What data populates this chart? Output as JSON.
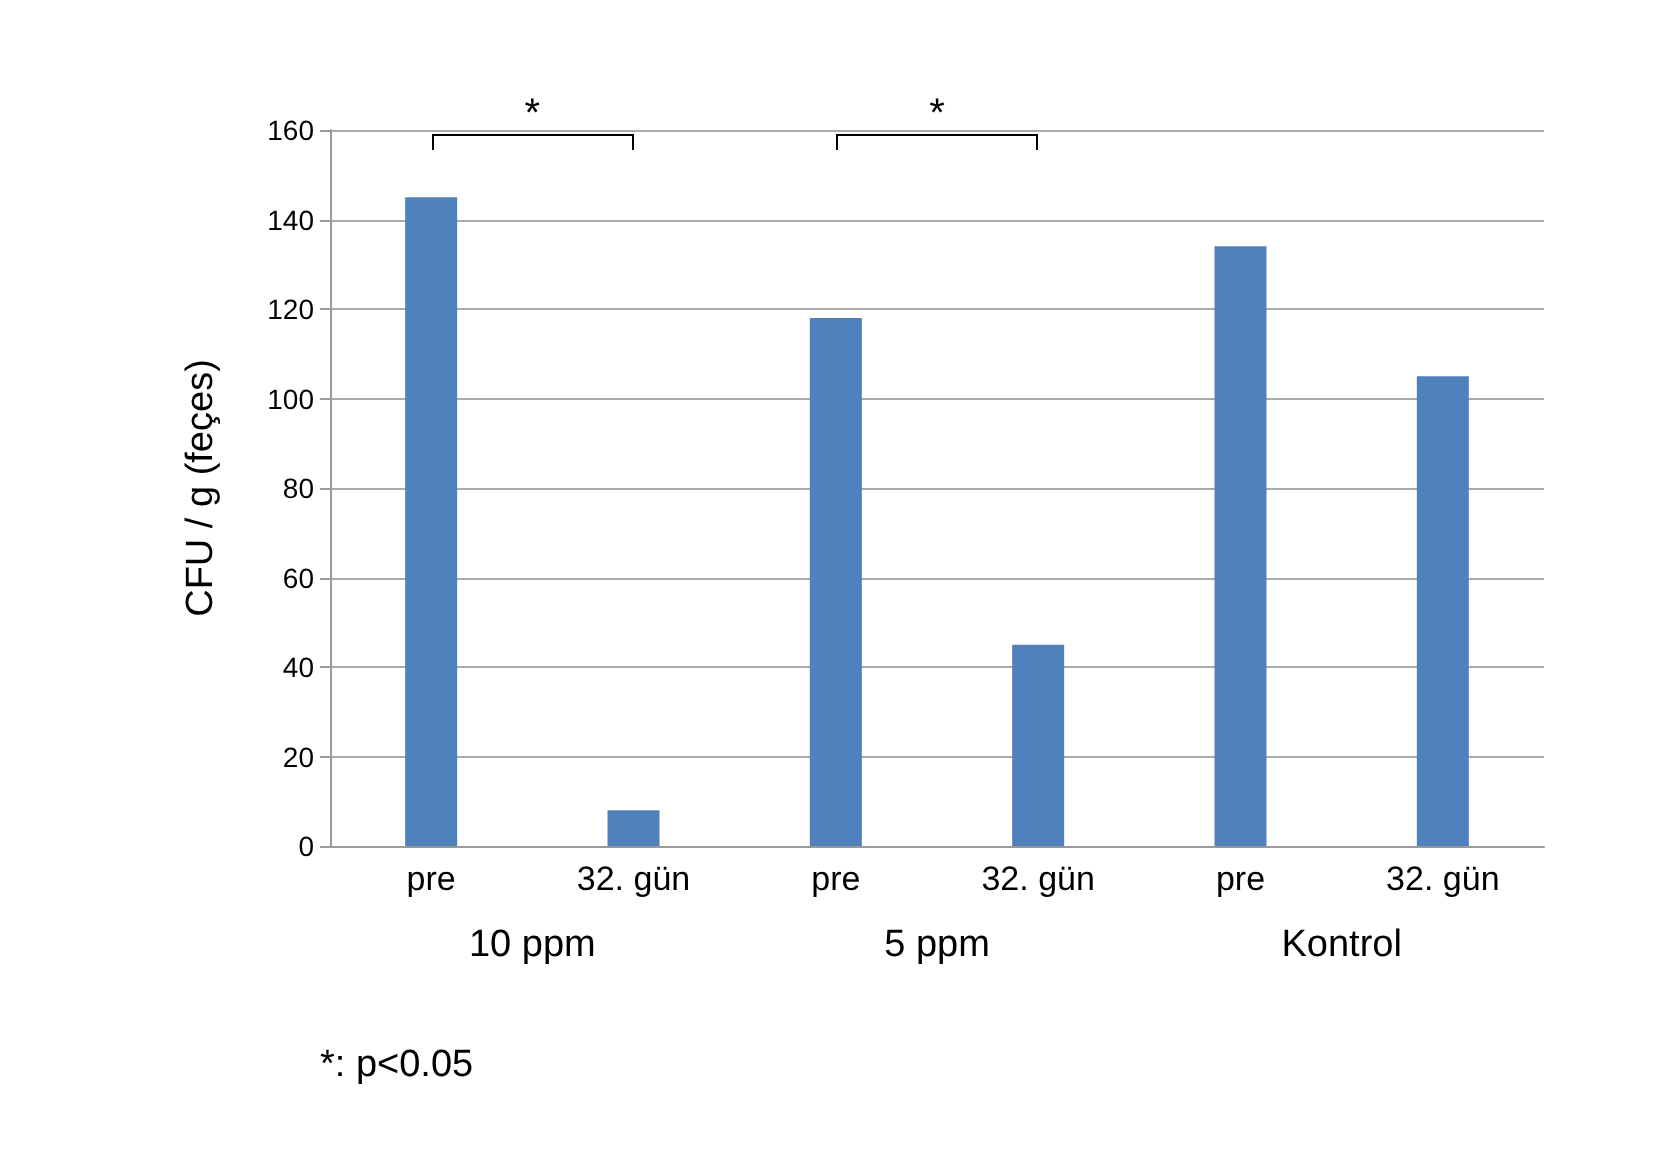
{
  "chart_data": {
    "type": "bar",
    "ylabel": "CFU / g (feçes)",
    "categories": [
      "pre",
      "32. gün",
      "pre",
      "32. gün",
      "pre",
      "32. gün"
    ],
    "values": [
      145,
      8,
      118,
      45,
      134,
      105
    ],
    "color": "#4f81bd",
    "ylim": [
      0,
      160
    ],
    "yticks": [
      0,
      20,
      40,
      60,
      80,
      100,
      120,
      140,
      160
    ],
    "grid": "y",
    "annotations": [
      "*",
      "*",
      "10 ppm",
      "5 ppm",
      "Kontrol",
      "*: p<0.05"
    ]
  }
}
